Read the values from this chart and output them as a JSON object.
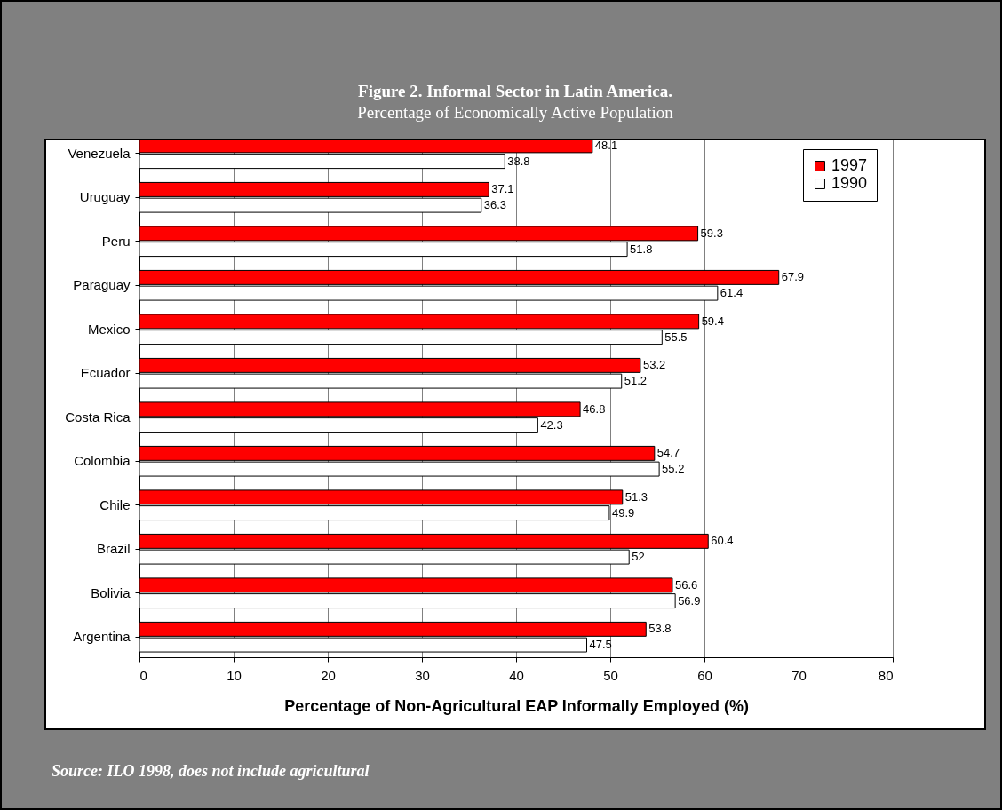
{
  "chart_data": {
    "type": "bar",
    "orientation": "horizontal",
    "title": "Figure 2.  Informal Sector in Latin America.",
    "subtitle": "Percentage of Economically Active Population",
    "xlabel": "Percentage of Non-Agricultural EAP Informally Employed (%)",
    "categories": [
      "Venezuela",
      "Uruguay",
      "Peru",
      "Paraguay",
      "Mexico",
      "Ecuador",
      "Costa Rica",
      "Colombia",
      "Chile",
      "Brazil",
      "Bolivia",
      "Argentina"
    ],
    "series": [
      {
        "name": "1997",
        "color": "#ff0000",
        "values": [
          48.1,
          37.1,
          59.3,
          67.9,
          59.4,
          53.2,
          46.8,
          54.7,
          51.3,
          60.4,
          56.6,
          53.8
        ]
      },
      {
        "name": "1990",
        "color": "#ffffff",
        "values": [
          38.8,
          36.3,
          51.8,
          61.4,
          55.5,
          51.2,
          42.3,
          55.2,
          49.9,
          52,
          56.9,
          47.5
        ]
      }
    ],
    "xlim": [
      0,
      80
    ],
    "xticks": [
      0,
      10,
      20,
      30,
      40,
      50,
      60,
      70,
      80
    ],
    "grid": "x",
    "legend": "top right",
    "data_labels": true,
    "annotations": [
      "Source:  ILO 1998, does not include agricultural"
    ]
  }
}
